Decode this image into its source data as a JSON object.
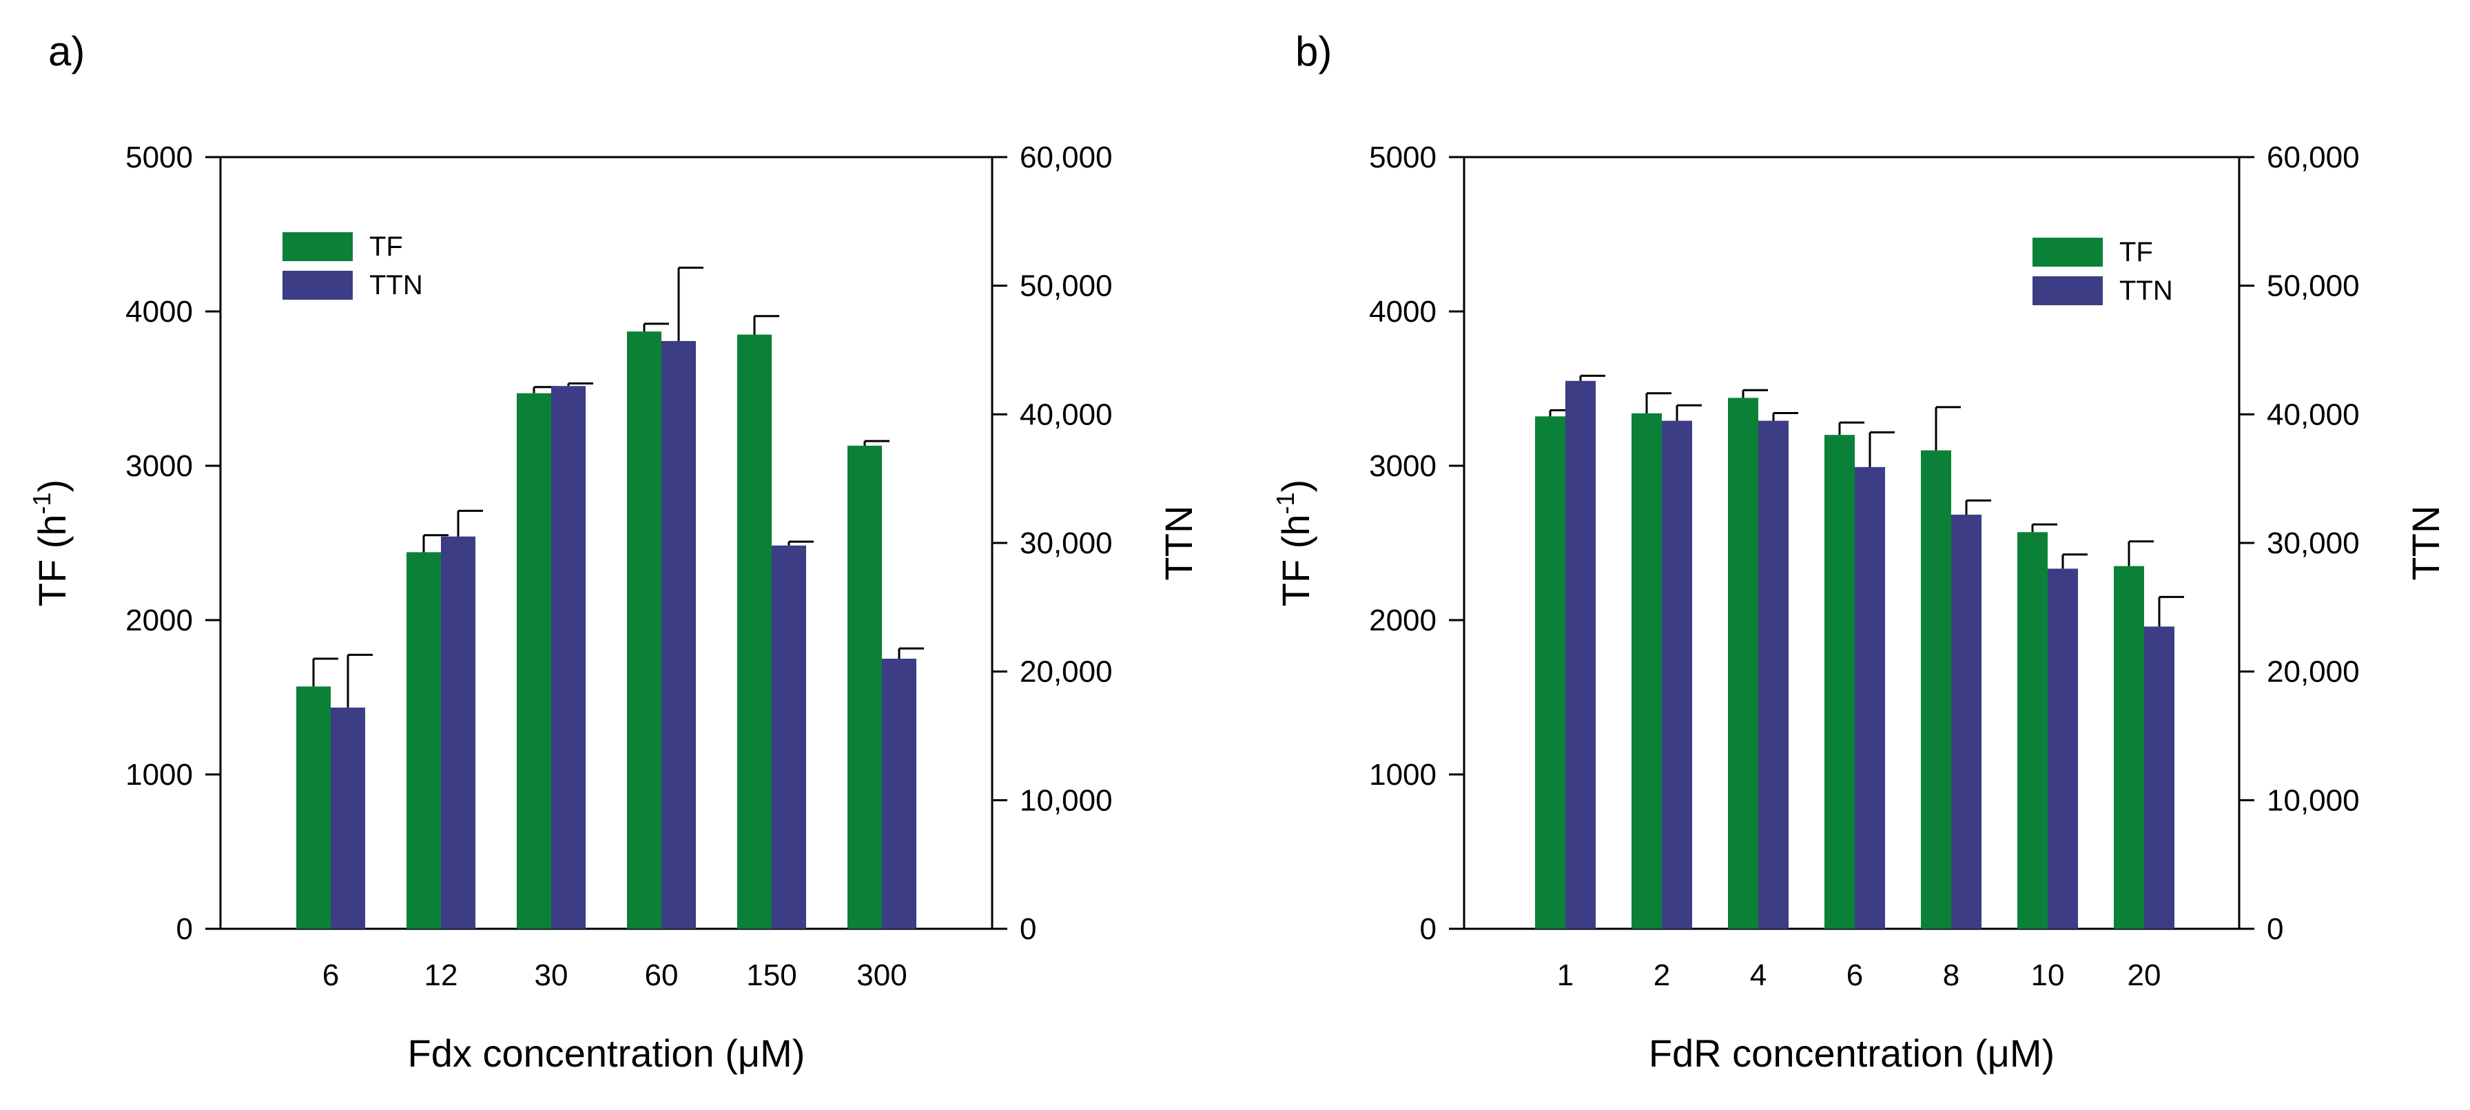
{
  "colors": {
    "tf": "#0A8137",
    "ttn": "#3C3D85",
    "axis": "#000000",
    "background": "#FFFFFF"
  },
  "chart_data": [
    {
      "type": "bar",
      "panel_label": "a)",
      "xlabel": "Fdx concentration (μM)",
      "ylabel_left": "TF (h",
      "ylabel_left_sup": "-1",
      "ylabel_left_close": ")",
      "ylabel_right": "TTN",
      "categories": [
        "6",
        "12",
        "30",
        "60",
        "150",
        "300"
      ],
      "ylim_left": [
        0,
        5000
      ],
      "yticks_left": [
        "0",
        "1000",
        "2000",
        "3000",
        "4000",
        "5000"
      ],
      "ylim_right": [
        0,
        60000
      ],
      "yticks_right": [
        "0",
        "10,000",
        "20,000",
        "30,000",
        "40,000",
        "50,000",
        "60,000"
      ],
      "legend_position": "top-left",
      "series": [
        {
          "name": "TF",
          "axis": "left",
          "values": [
            1570,
            2440,
            3470,
            3870,
            3850,
            3130
          ],
          "errors": [
            180,
            110,
            40,
            50,
            120,
            30
          ]
        },
        {
          "name": "TTN",
          "axis": "right",
          "values": [
            17200,
            30500,
            42200,
            45700,
            29800,
            21000
          ],
          "errors": [
            4100,
            2000,
            200,
            5700,
            300,
            800
          ]
        }
      ]
    },
    {
      "type": "bar",
      "panel_label": "b)",
      "xlabel": "FdR concentration (μM)",
      "ylabel_left": "TF (h",
      "ylabel_left_sup": "-1",
      "ylabel_left_close": ")",
      "ylabel_right": "TTN",
      "categories": [
        "1",
        "2",
        "4",
        "6",
        "8",
        "10",
        "20"
      ],
      "ylim_left": [
        0,
        5000
      ],
      "yticks_left": [
        "0",
        "1000",
        "2000",
        "3000",
        "4000",
        "5000"
      ],
      "ylim_right": [
        0,
        60000
      ],
      "yticks_right": [
        "0",
        "10,000",
        "20,000",
        "30,000",
        "40,000",
        "50,000",
        "60,000"
      ],
      "legend_position": "top-right",
      "series": [
        {
          "name": "TF",
          "axis": "left",
          "values": [
            3320,
            3340,
            3440,
            3200,
            3100,
            2570,
            2350
          ],
          "errors": [
            40,
            130,
            50,
            80,
            280,
            50,
            160
          ]
        },
        {
          "name": "TTN",
          "axis": "right",
          "values": [
            42600,
            39500,
            39500,
            35900,
            32200,
            28000,
            23500
          ],
          "errors": [
            400,
            1200,
            600,
            2700,
            1100,
            1100,
            2300
          ]
        }
      ]
    }
  ]
}
